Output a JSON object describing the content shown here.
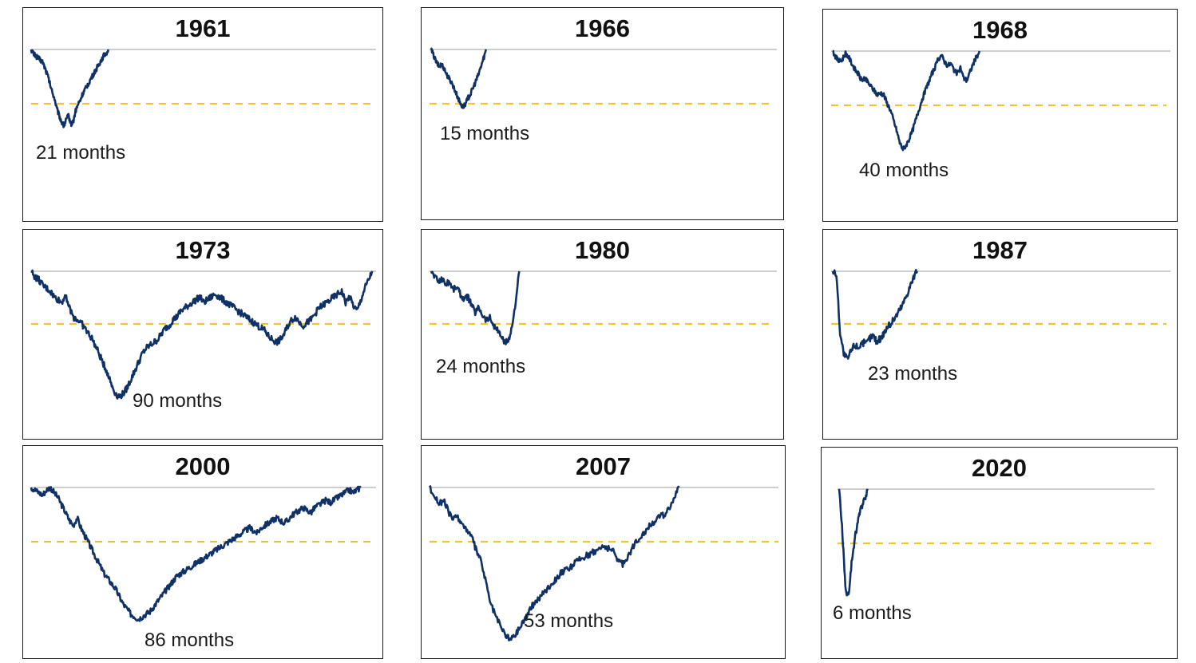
{
  "colors": {
    "line": "#0f3166",
    "threshold": "#f3c230",
    "peak": "#b0b0b0"
  },
  "chart_data": [
    {
      "type": "line",
      "title": "1961",
      "annotation": "21 months",
      "duration_months": 21,
      "values": [
        1.0,
        0.99,
        0.985,
        0.98,
        0.975,
        0.97,
        0.955,
        0.94,
        0.92,
        0.9,
        0.885,
        0.86,
        0.845,
        0.83,
        0.82,
        0.835,
        0.845,
        0.825,
        0.83,
        0.855,
        0.87,
        0.88,
        0.895,
        0.905,
        0.915,
        0.925,
        0.935,
        0.945,
        0.955,
        0.965,
        0.975,
        0.985,
        0.99,
        1.0
      ]
    },
    {
      "type": "line",
      "title": "1966",
      "annotation": "15 months",
      "duration_months": 15,
      "values": [
        1.0,
        0.985,
        0.97,
        0.96,
        0.965,
        0.955,
        0.94,
        0.93,
        0.92,
        0.905,
        0.89,
        0.875,
        0.865,
        0.87,
        0.885,
        0.895,
        0.91,
        0.925,
        0.94,
        0.96,
        0.98,
        1.0
      ]
    },
    {
      "type": "line",
      "title": "1968",
      "annotation": "40 months",
      "duration_months": 40,
      "values": [
        1.0,
        0.985,
        0.975,
        0.98,
        0.995,
        0.985,
        0.97,
        0.955,
        0.945,
        0.93,
        0.935,
        0.925,
        0.915,
        0.905,
        0.895,
        0.9,
        0.895,
        0.875,
        0.86,
        0.835,
        0.81,
        0.78,
        0.765,
        0.775,
        0.79,
        0.81,
        0.835,
        0.86,
        0.885,
        0.905,
        0.925,
        0.945,
        0.96,
        0.98,
        0.99,
        0.975,
        0.965,
        0.97,
        0.955,
        0.945,
        0.96,
        0.935,
        0.93,
        0.95,
        0.97,
        0.985,
        1.0
      ]
    },
    {
      "type": "line",
      "title": "1973",
      "annotation": "90 months",
      "duration_months": 90,
      "values": [
        1.0,
        0.99,
        0.985,
        0.975,
        0.97,
        0.965,
        0.955,
        0.95,
        0.945,
        0.96,
        0.935,
        0.92,
        0.915,
        0.91,
        0.9,
        0.89,
        0.88,
        0.865,
        0.85,
        0.835,
        0.82,
        0.8,
        0.785,
        0.78,
        0.785,
        0.795,
        0.81,
        0.825,
        0.84,
        0.855,
        0.865,
        0.87,
        0.875,
        0.88,
        0.89,
        0.9,
        0.905,
        0.915,
        0.92,
        0.93,
        0.935,
        0.94,
        0.945,
        0.95,
        0.955,
        0.945,
        0.95,
        0.955,
        0.96,
        0.955,
        0.95,
        0.945,
        0.94,
        0.935,
        0.93,
        0.925,
        0.92,
        0.915,
        0.91,
        0.905,
        0.9,
        0.895,
        0.885,
        0.88,
        0.875,
        0.88,
        0.89,
        0.905,
        0.915,
        0.92,
        0.91,
        0.905,
        0.91,
        0.915,
        0.925,
        0.935,
        0.94,
        0.945,
        0.95,
        0.955,
        0.96,
        0.965,
        0.945,
        0.955,
        0.94,
        0.93,
        0.95,
        0.97,
        0.985,
        1.0
      ]
    },
    {
      "type": "line",
      "title": "1980",
      "annotation": "24 months",
      "duration_months": 24,
      "values": [
        1.0,
        0.99,
        0.98,
        0.985,
        0.975,
        0.98,
        0.965,
        0.97,
        0.955,
        0.945,
        0.95,
        0.935,
        0.92,
        0.93,
        0.915,
        0.905,
        0.91,
        0.895,
        0.885,
        0.875,
        0.86,
        0.865,
        0.89,
        0.94,
        1.0
      ]
    },
    {
      "type": "line",
      "title": "1987",
      "annotation": "23 months",
      "duration_months": 23,
      "values": [
        1.0,
        0.995,
        0.9,
        0.865,
        0.855,
        0.87,
        0.88,
        0.875,
        0.885,
        0.88,
        0.89,
        0.895,
        0.885,
        0.89,
        0.9,
        0.91,
        0.915,
        0.925,
        0.935,
        0.945,
        0.96,
        0.975,
        0.99,
        1.0
      ]
    },
    {
      "type": "line",
      "title": "2000",
      "annotation": "86 months",
      "duration_months": 86,
      "values": [
        1.0,
        0.995,
        0.99,
        0.985,
        0.995,
        1.0,
        0.99,
        0.98,
        0.965,
        0.95,
        0.935,
        0.925,
        0.94,
        0.92,
        0.905,
        0.89,
        0.875,
        0.86,
        0.845,
        0.83,
        0.82,
        0.81,
        0.8,
        0.785,
        0.77,
        0.76,
        0.75,
        0.745,
        0.74,
        0.745,
        0.75,
        0.755,
        0.765,
        0.775,
        0.785,
        0.795,
        0.805,
        0.815,
        0.825,
        0.83,
        0.835,
        0.84,
        0.845,
        0.85,
        0.855,
        0.86,
        0.865,
        0.87,
        0.875,
        0.88,
        0.885,
        0.89,
        0.895,
        0.9,
        0.905,
        0.91,
        0.915,
        0.92,
        0.915,
        0.91,
        0.92,
        0.925,
        0.93,
        0.935,
        0.94,
        0.935,
        0.93,
        0.935,
        0.945,
        0.95,
        0.955,
        0.96,
        0.955,
        0.95,
        0.96,
        0.965,
        0.97,
        0.975,
        0.97,
        0.975,
        0.98,
        0.985,
        0.99,
        0.995,
        0.99,
        0.995,
        1.0
      ]
    },
    {
      "type": "line",
      "title": "2007",
      "annotation": "53 months",
      "duration_months": 53,
      "values": [
        1.0,
        0.985,
        0.97,
        0.975,
        0.955,
        0.94,
        0.945,
        0.93,
        0.92,
        0.905,
        0.88,
        0.86,
        0.82,
        0.78,
        0.76,
        0.74,
        0.725,
        0.715,
        0.72,
        0.735,
        0.75,
        0.765,
        0.78,
        0.79,
        0.8,
        0.81,
        0.82,
        0.83,
        0.84,
        0.845,
        0.85,
        0.86,
        0.865,
        0.87,
        0.875,
        0.88,
        0.885,
        0.89,
        0.885,
        0.88,
        0.865,
        0.855,
        0.87,
        0.885,
        0.9,
        0.91,
        0.92,
        0.93,
        0.94,
        0.945,
        0.95,
        0.965,
        0.98,
        1.0
      ]
    },
    {
      "type": "line",
      "title": "2020",
      "annotation": "6 months",
      "duration_months": 6,
      "values": [
        1.0,
        0.93,
        0.83,
        0.82,
        0.88,
        0.92,
        0.95,
        0.97,
        0.985,
        1.0
      ]
    }
  ]
}
